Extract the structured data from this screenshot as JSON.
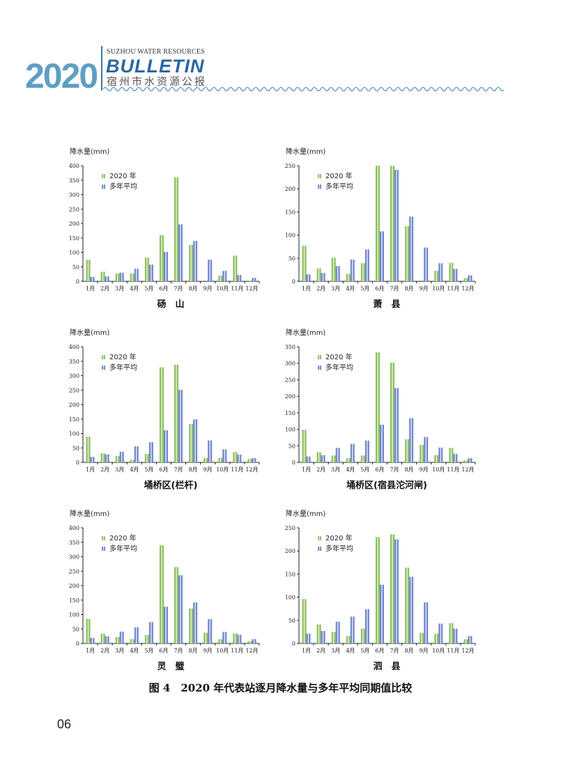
{
  "header": {
    "year": "2020",
    "subtitle": "SUZHOU WATER RESOURCES",
    "title": "BULLETIN",
    "title_cn": "宿州市水资源公报"
  },
  "colors": {
    "series_2020": "#8cbf5c",
    "series_avg": "#6f86cc",
    "brand": "#2c68a3"
  },
  "months": [
    "1月",
    "2月",
    "3月",
    "4月",
    "5月",
    "6月",
    "7月",
    "8月",
    "9月",
    "10月",
    "11月",
    "12月"
  ],
  "legend": [
    "2020 年",
    "多年平均"
  ],
  "chart_data": [
    {
      "type": "bar",
      "title": "砀　山",
      "ylabel": "降水量(mm)",
      "ylim": [
        0,
        400
      ],
      "yticks": [
        0,
        50,
        100,
        150,
        200,
        250,
        300,
        350,
        400
      ],
      "series": [
        {
          "name": "2020 年",
          "values": [
            75,
            33,
            27,
            27,
            82,
            160,
            360,
            126,
            0,
            20,
            89,
            3
          ]
        },
        {
          "name": "多年平均",
          "values": [
            15,
            17,
            30,
            44,
            58,
            102,
            197,
            140,
            75,
            36,
            22,
            12
          ]
        }
      ]
    },
    {
      "type": "bar",
      "title": "萧　县",
      "ylabel": "降水量(mm)",
      "ylim": [
        0,
        250
      ],
      "yticks": [
        0,
        50,
        100,
        150,
        200,
        250
      ],
      "series": [
        {
          "name": "2020 年",
          "values": [
            77,
            28,
            51,
            16,
            39,
            250,
            250,
            119,
            0,
            23,
            40,
            7
          ]
        },
        {
          "name": "多年平均",
          "values": [
            15,
            18,
            33,
            47,
            69,
            108,
            241,
            140,
            73,
            39,
            27,
            13
          ]
        }
      ]
    },
    {
      "type": "bar",
      "title": "埇桥区(栏杆)",
      "ylabel": "降水量(mm)",
      "ylim": [
        0,
        400
      ],
      "yticks": [
        0,
        50,
        100,
        150,
        200,
        250,
        300,
        350,
        400
      ],
      "series": [
        {
          "name": "2020 年",
          "values": [
            89,
            31,
            22,
            9,
            29,
            329,
            338,
            133,
            15,
            16,
            36,
            12
          ]
        },
        {
          "name": "多年平均",
          "values": [
            19,
            28,
            37,
            56,
            70,
            111,
            251,
            149,
            76,
            45,
            27,
            15
          ]
        }
      ]
    },
    {
      "type": "bar",
      "title": "埇桥区(宿县沱河闸)",
      "ylabel": "降水量(mm)",
      "ylim": [
        0,
        350
      ],
      "yticks": [
        0,
        50,
        100,
        150,
        200,
        250,
        300,
        350
      ],
      "series": [
        {
          "name": "2020 年",
          "values": [
            99,
            31,
            21,
            13,
            21,
            333,
            302,
            70,
            53,
            22,
            44,
            6
          ]
        },
        {
          "name": "多年平均",
          "values": [
            18,
            22,
            44,
            56,
            66,
            114,
            225,
            134,
            77,
            45,
            26,
            13
          ]
        }
      ]
    },
    {
      "type": "bar",
      "title": "灵　璧",
      "ylabel": "降水量(mm)",
      "ylim": [
        0,
        400
      ],
      "yticks": [
        0,
        50,
        100,
        150,
        200,
        250,
        300,
        350,
        400
      ],
      "series": [
        {
          "name": "2020 年",
          "values": [
            85,
            34,
            22,
            15,
            29,
            340,
            264,
            121,
            37,
            15,
            35,
            8
          ]
        },
        {
          "name": "多年平均",
          "values": [
            19,
            25,
            41,
            56,
            74,
            127,
            236,
            142,
            84,
            40,
            30,
            15
          ]
        }
      ]
    },
    {
      "type": "bar",
      "title": "泗　县",
      "ylabel": "降水量(mm)",
      "ylim": [
        0,
        250
      ],
      "yticks": [
        0,
        50,
        100,
        150,
        200,
        250
      ],
      "series": [
        {
          "name": "2020 年",
          "values": [
            96,
            41,
            25,
            16,
            32,
            230,
            236,
            164,
            23,
            21,
            44,
            9
          ]
        },
        {
          "name": "多年平均",
          "values": [
            21,
            27,
            47,
            58,
            74,
            127,
            225,
            144,
            89,
            43,
            32,
            16
          ]
        }
      ]
    }
  ],
  "caption": "图 4　2020 年代表站逐月降水量与多年平均同期值比较",
  "page_number": "06"
}
